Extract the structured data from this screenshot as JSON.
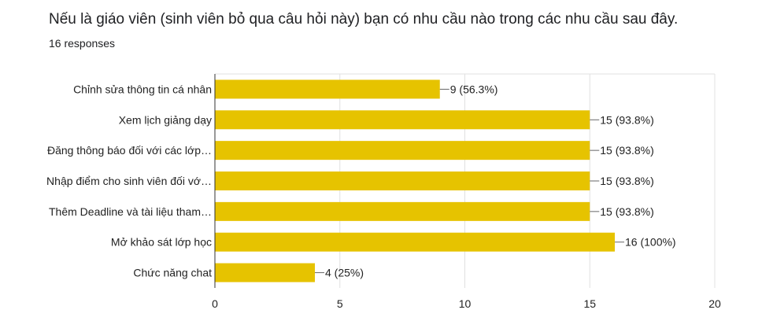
{
  "header": {
    "title": "Nếu là giáo viên (sinh viên bỏ qua câu hỏi này) bạn có nhu cầu nào trong các nhu cầu sau đây.",
    "responses": "16 responses"
  },
  "colors": {
    "bar": "#E6C300",
    "grid": "#e0e0e0",
    "axis": "#333333",
    "text": "#222222"
  },
  "chart_data": {
    "type": "bar",
    "orientation": "horizontal",
    "categories": [
      "Chỉnh sửa thông tin cá nhân",
      "Xem lịch giảng dạy",
      "Đăng thông báo đối với các lớp…",
      "Nhập điểm cho sinh viên đối vớ…",
      "Thêm Deadline và tài liệu tham…",
      "Mở khảo sát lớp học",
      "Chức năng chat"
    ],
    "values": [
      9,
      15,
      15,
      15,
      15,
      16,
      4
    ],
    "data_labels": [
      "9 (56.3%)",
      "15 (93.8%)",
      "15 (93.8%)",
      "15 (93.8%)",
      "15 (93.8%)",
      "16 (100%)",
      "4 (25%)"
    ],
    "xlim": [
      0,
      20
    ],
    "xticks": [
      0,
      5,
      10,
      15,
      20
    ],
    "grid": true,
    "legend": "none"
  }
}
